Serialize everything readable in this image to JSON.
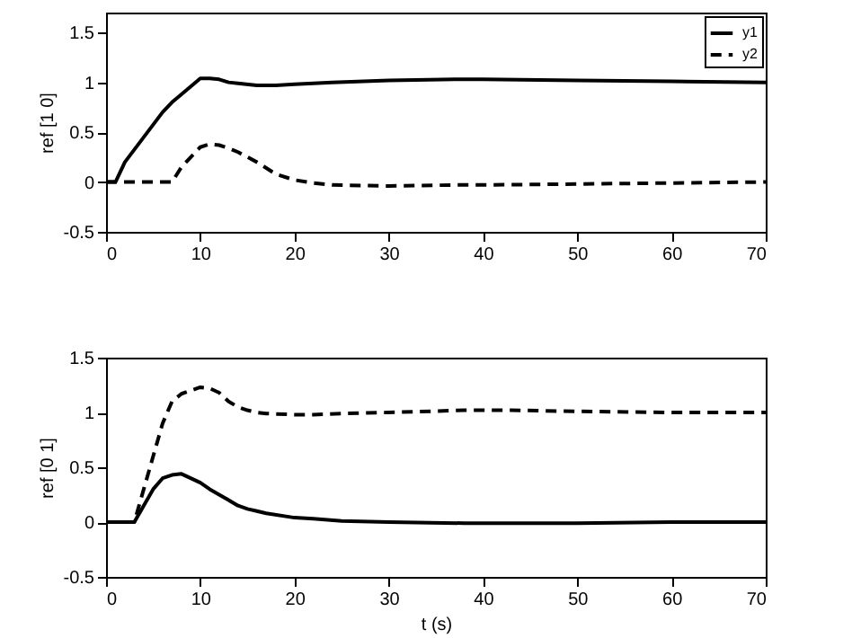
{
  "chart_data": [
    {
      "type": "line",
      "ylabel": "ref [1 0]",
      "xlim": [
        0,
        70
      ],
      "ylim": [
        -0.5,
        1.7
      ],
      "xticks": [
        0,
        10,
        20,
        30,
        40,
        50,
        60,
        70
      ],
      "yticks": [
        -0.5,
        0,
        0.5,
        1,
        1.5
      ],
      "grid": false,
      "legend": "top right",
      "marker": "none",
      "x": [
        0,
        1,
        2,
        4,
        6,
        7,
        8,
        10,
        11,
        12,
        13,
        14,
        16,
        18,
        20,
        22,
        24,
        30,
        37,
        40,
        50,
        60,
        70
      ],
      "series": [
        {
          "name": "y1",
          "color": "#000000",
          "line_style": "solid",
          "values": [
            0,
            0,
            0.2,
            0.45,
            0.7,
            0.8,
            0.88,
            1.04,
            1.04,
            1.03,
            1.0,
            0.99,
            0.97,
            0.97,
            0.98,
            0.99,
            1.0,
            1.02,
            1.03,
            1.03,
            1.02,
            1.01,
            1.0
          ]
        },
        {
          "name": "y2",
          "color": "#000000",
          "line_style": "dashed",
          "values": [
            0,
            0,
            0,
            0,
            0,
            0,
            0.15,
            0.35,
            0.38,
            0.37,
            0.34,
            0.3,
            0.2,
            0.08,
            0.02,
            -0.01,
            -0.03,
            -0.04,
            -0.03,
            -0.03,
            -0.02,
            -0.01,
            0
          ]
        }
      ]
    },
    {
      "type": "line",
      "xlabel": "t (s)",
      "ylabel": "ref [0 1]",
      "xlim": [
        0,
        70
      ],
      "ylim": [
        -0.5,
        1.5
      ],
      "xticks": [
        0,
        10,
        20,
        30,
        40,
        50,
        60,
        70
      ],
      "yticks": [
        -0.5,
        0,
        0.5,
        1,
        1.5
      ],
      "grid": false,
      "marker": "none",
      "x": [
        0,
        3,
        4,
        5,
        6,
        7,
        8,
        10,
        11,
        12,
        13,
        14,
        15,
        16,
        17,
        20,
        22,
        25,
        30,
        38,
        43,
        50,
        60,
        70
      ],
      "series": [
        {
          "color": "#000000",
          "line_style": "solid",
          "values": [
            0,
            0,
            0.15,
            0.3,
            0.4,
            0.43,
            0.44,
            0.36,
            0.3,
            0.25,
            0.2,
            0.15,
            0.12,
            0.1,
            0.08,
            0.04,
            0.03,
            0.01,
            0,
            -0.01,
            -0.01,
            -0.01,
            0,
            0
          ]
        },
        {
          "color": "#000000",
          "line_style": "dashed",
          "values": [
            0,
            0,
            0.3,
            0.6,
            0.9,
            1.1,
            1.17,
            1.23,
            1.22,
            1.18,
            1.1,
            1.05,
            1.02,
            1.0,
            0.99,
            0.98,
            0.98,
            0.99,
            1.0,
            1.02,
            1.02,
            1.01,
            1.0,
            1.0
          ]
        }
      ]
    }
  ]
}
